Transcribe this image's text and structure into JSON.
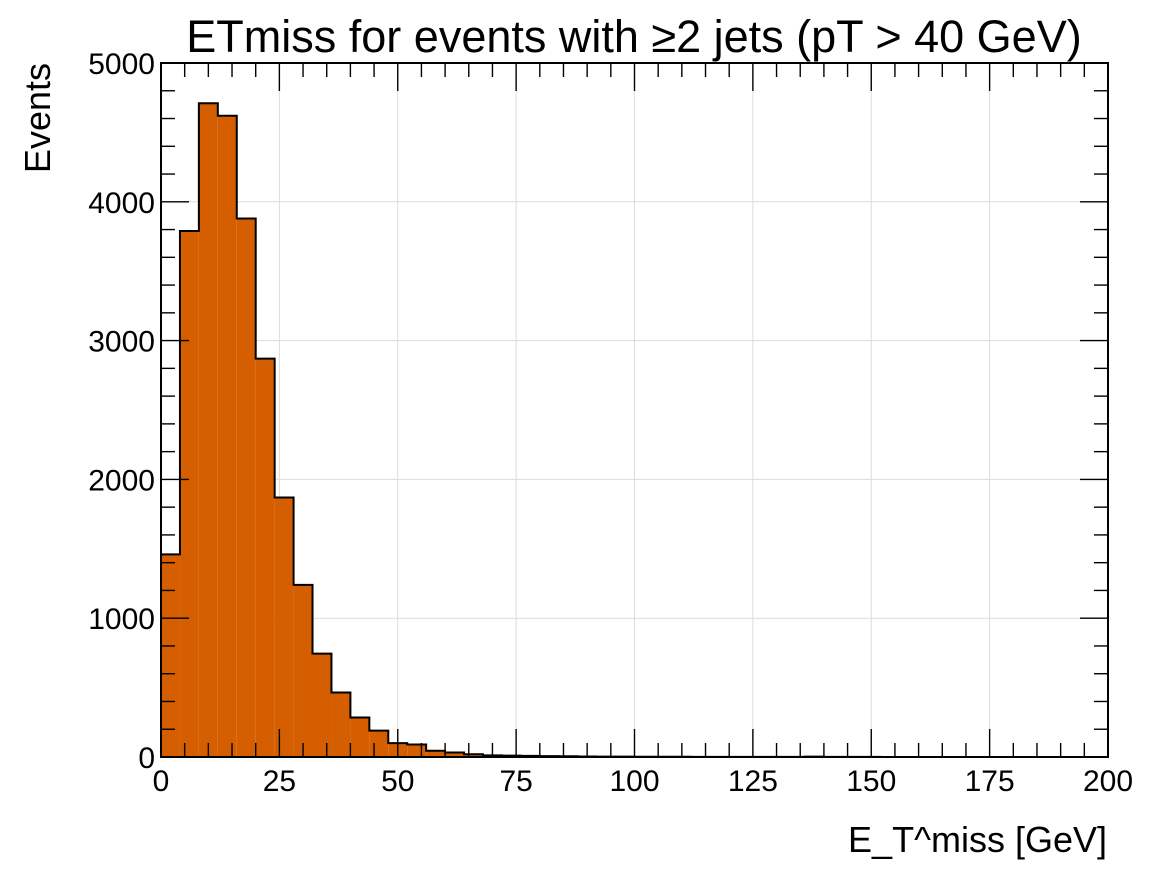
{
  "chart_data": {
    "type": "bar",
    "title": "ETmiss for events with ≥2 jets (pT > 40 GeV)",
    "xlabel": "E_T^miss [GeV]",
    "ylabel": "Events",
    "xlim": [
      0,
      200
    ],
    "ylim": [
      0,
      5000
    ],
    "grid": true,
    "color": "#d55e00",
    "edge_color": "#000000",
    "bin_width": 4,
    "bin_edges_start": 0,
    "x_ticks": [
      0,
      25,
      50,
      75,
      100,
      125,
      150,
      175,
      200
    ],
    "x_tick_labels": [
      "0",
      "25",
      "50",
      "75",
      "100",
      "125",
      "150",
      "175",
      "200"
    ],
    "y_ticks": [
      0,
      1000,
      2000,
      3000,
      4000,
      5000
    ],
    "y_tick_labels": [
      "0",
      "1000",
      "2000",
      "3000",
      "4000",
      "5000"
    ],
    "values": [
      1460,
      3790,
      4710,
      4620,
      3880,
      2870,
      1870,
      1240,
      745,
      465,
      285,
      190,
      100,
      90,
      45,
      32,
      20,
      12,
      10,
      8,
      6,
      5,
      4,
      3,
      3,
      2,
      2,
      2,
      1,
      1,
      1,
      1,
      1,
      1,
      3,
      1,
      1,
      1,
      0,
      0,
      0,
      0,
      0,
      0,
      0,
      0,
      0,
      0,
      0,
      0
    ]
  }
}
